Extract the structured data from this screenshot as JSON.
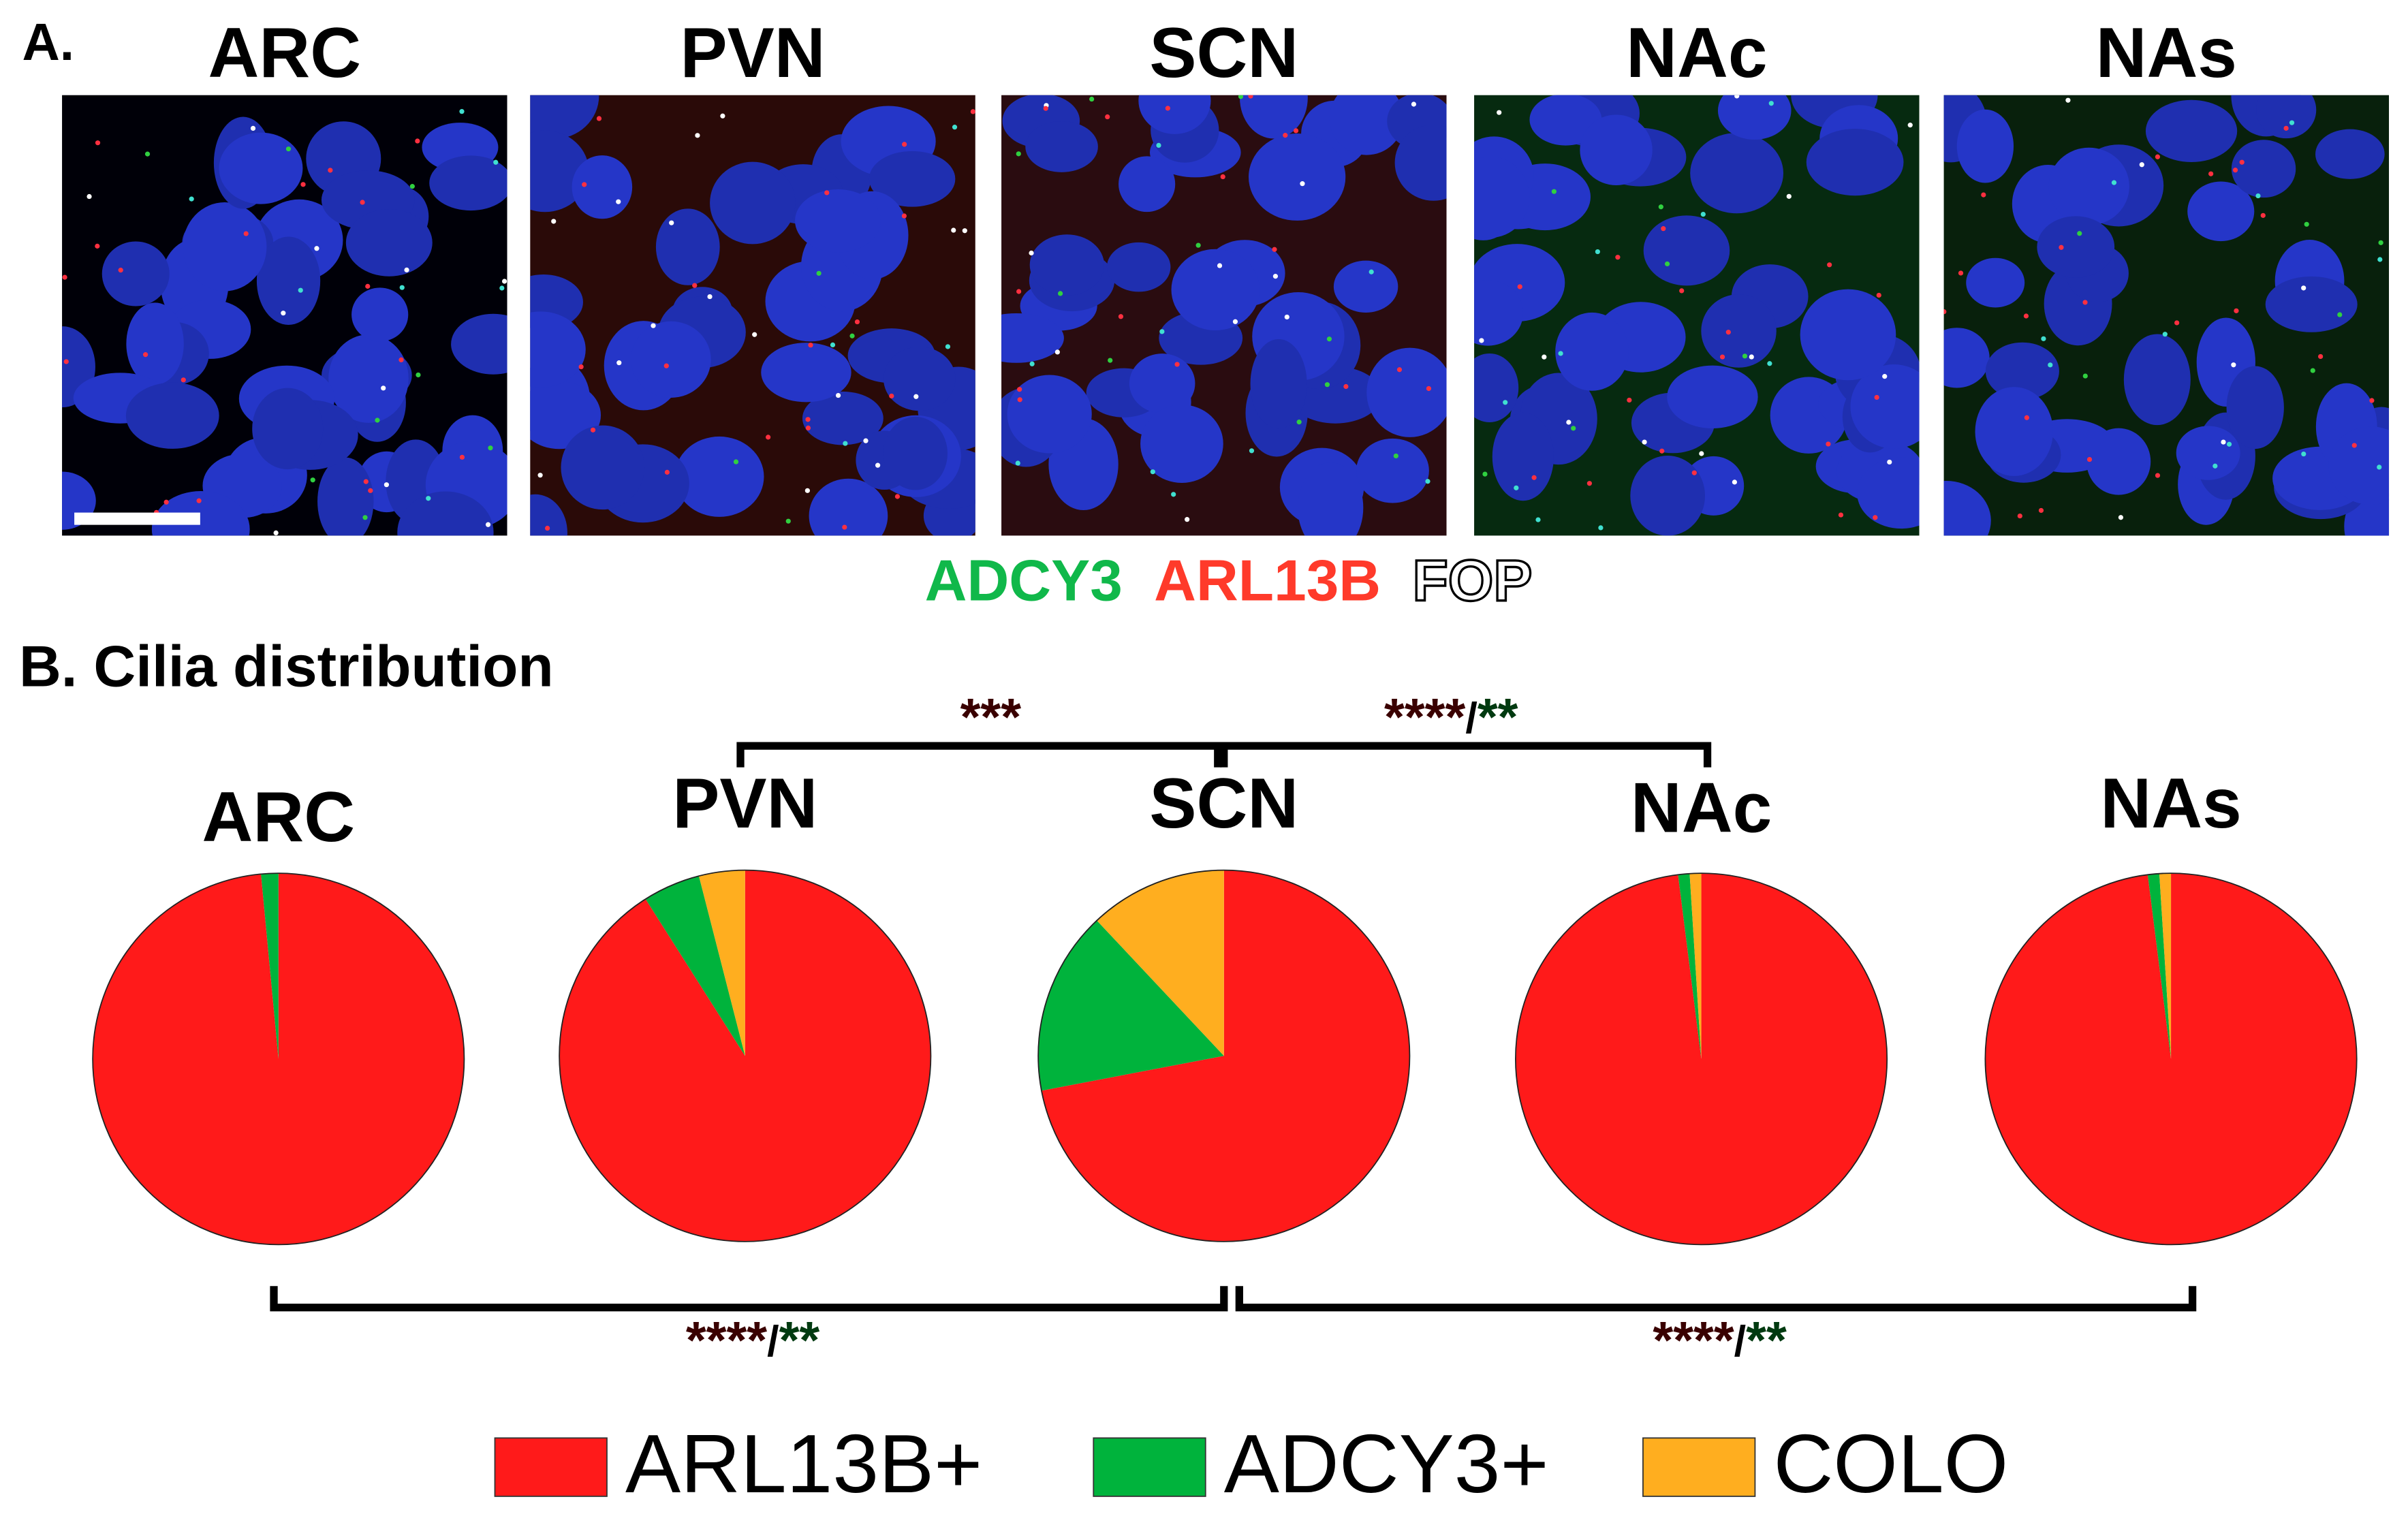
{
  "panel_a": {
    "label": "A.",
    "regions": [
      "ARC",
      "PVN",
      "SCN",
      "NAc",
      "NAs"
    ],
    "stains": [
      "ADCY3",
      "ARL13B",
      "FOP"
    ]
  },
  "panel_b": {
    "label": "B. Cilia distribution"
  },
  "significance": [
    {
      "parts": [
        "***"
      ]
    },
    {
      "parts": [
        "****",
        "/",
        "**"
      ]
    },
    {
      "parts": [
        "****",
        "/",
        "**"
      ]
    },
    {
      "parts": [
        "****",
        "/",
        "**"
      ]
    }
  ],
  "chart_data": [
    {
      "type": "pie",
      "title": "ARC",
      "categories": [
        "ARL13B+",
        "ADCY3+",
        "COLO"
      ],
      "values": [
        98.5,
        1.5,
        0
      ],
      "colors": [
        "#ff1a1a",
        "#00b33c",
        "#ffae1f"
      ]
    },
    {
      "type": "pie",
      "title": "PVN",
      "categories": [
        "ARL13B+",
        "ADCY3+",
        "COLO"
      ],
      "values": [
        91,
        5,
        4
      ],
      "colors": [
        "#ff1a1a",
        "#00b33c",
        "#ffae1f"
      ]
    },
    {
      "type": "pie",
      "title": "SCN",
      "categories": [
        "ARL13B+",
        "ADCY3+",
        "COLO"
      ],
      "values": [
        72,
        16,
        12
      ],
      "colors": [
        "#ff1a1a",
        "#00b33c",
        "#ffae1f"
      ]
    },
    {
      "type": "pie",
      "title": "NAc",
      "categories": [
        "ARL13B+",
        "ADCY3+",
        "COLO"
      ],
      "values": [
        98,
        1,
        1
      ],
      "colors": [
        "#ff1a1a",
        "#00b33c",
        "#ffae1f"
      ]
    },
    {
      "type": "pie",
      "title": "NAs",
      "categories": [
        "ARL13B+",
        "ADCY3+",
        "COLO"
      ],
      "values": [
        98,
        1,
        1
      ],
      "colors": [
        "#ff1a1a",
        "#00b33c",
        "#ffae1f"
      ]
    }
  ]
}
